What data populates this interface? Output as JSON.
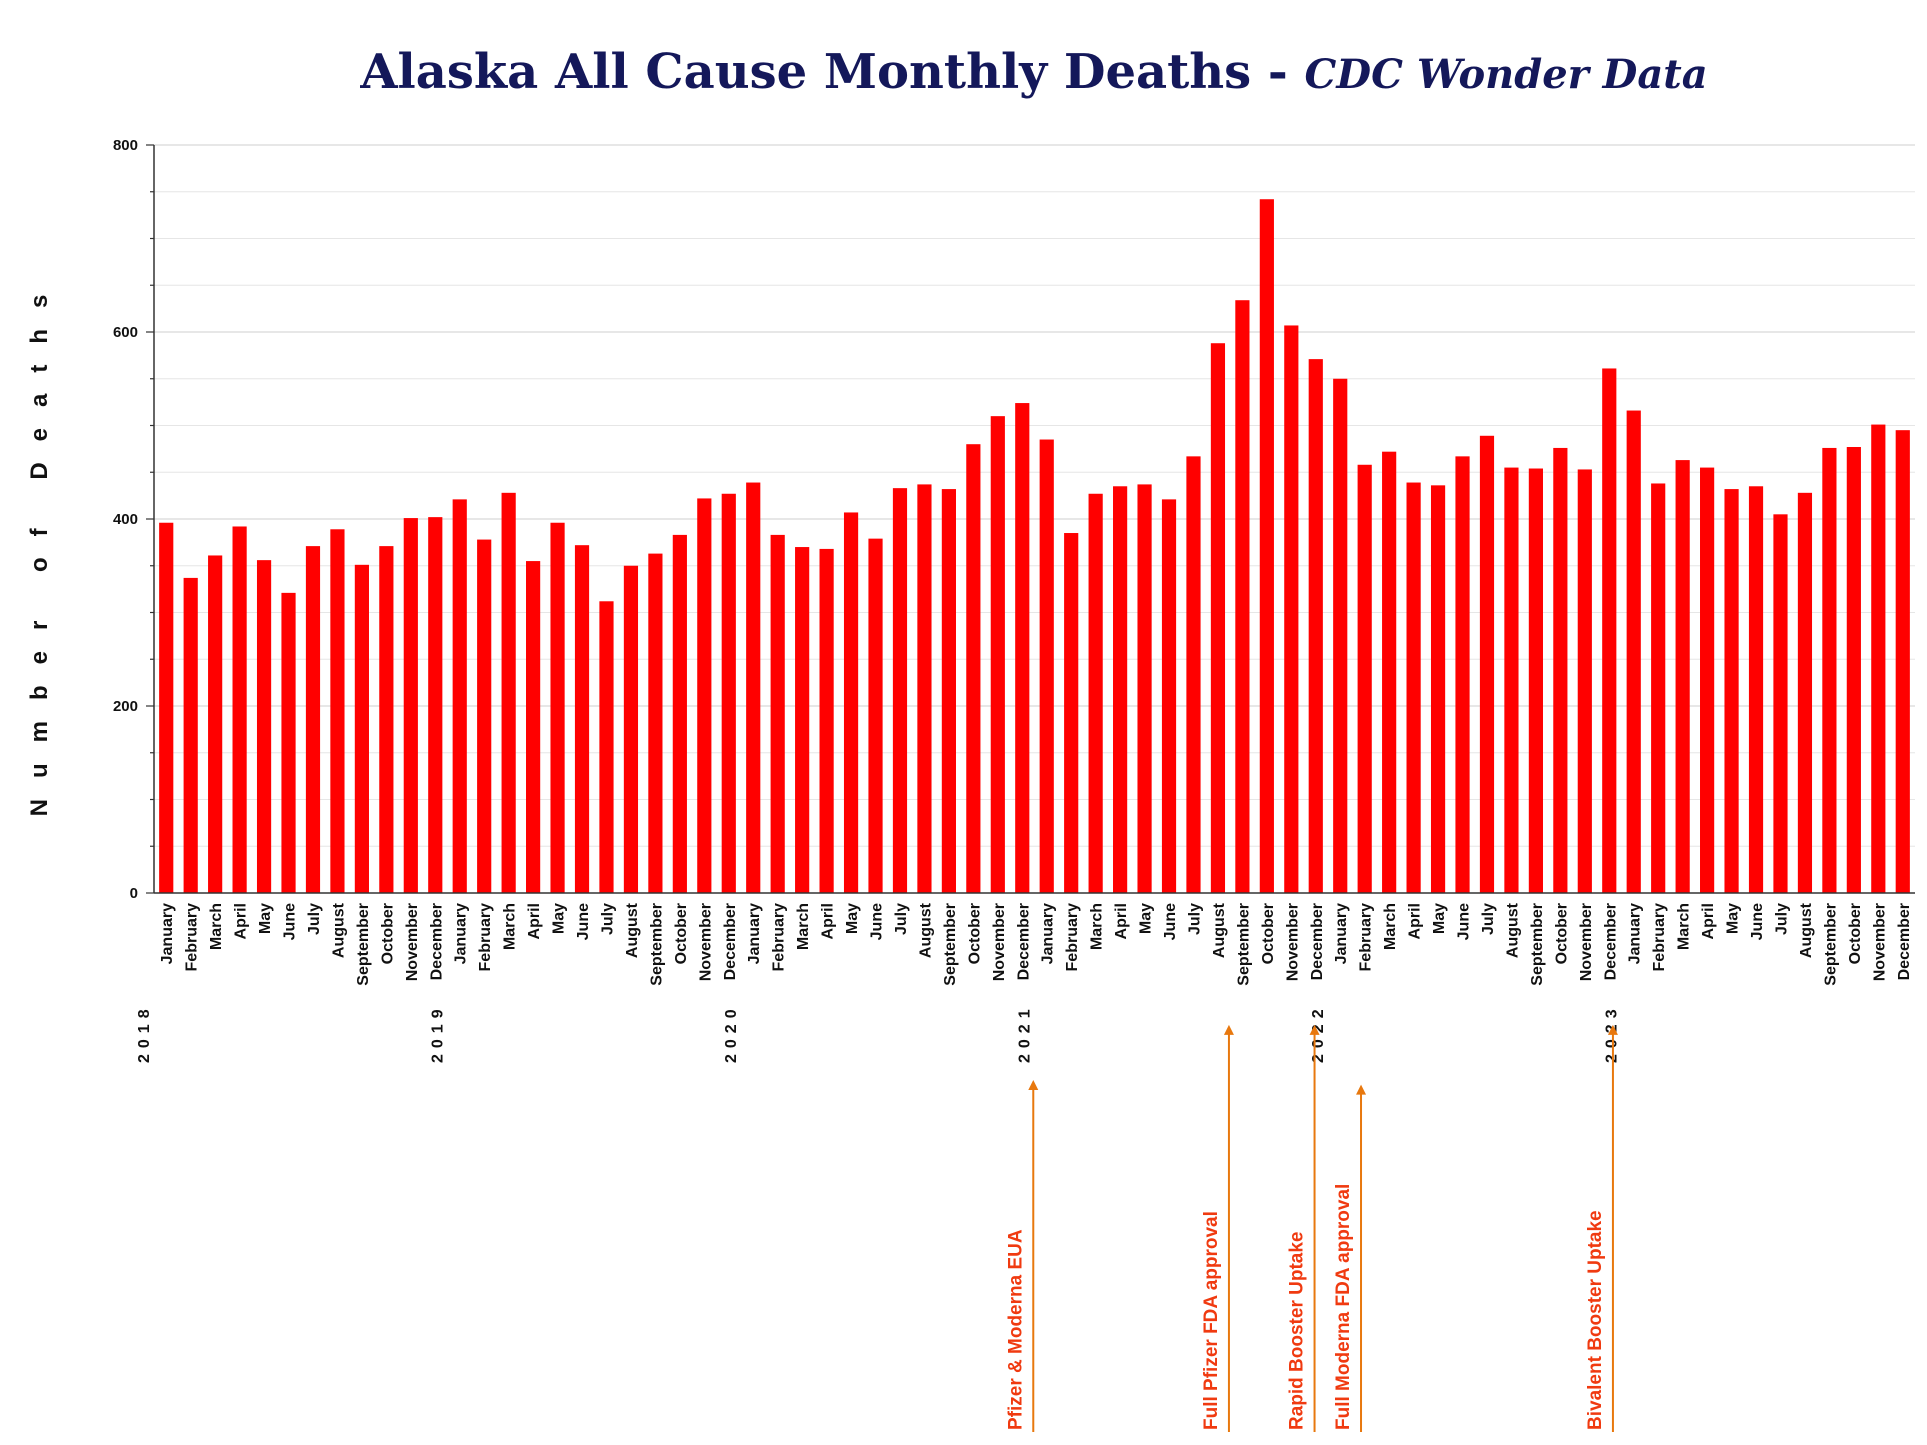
{
  "chart_data": {
    "type": "bar",
    "title": "Alaska All Cause Monthly Deaths - ",
    "subtitle": "CDC Wonder Data",
    "ylabel": "Number of Deaths",
    "xlabel": "",
    "ylim": [
      0,
      800
    ],
    "yticks": [
      0,
      200,
      400,
      600,
      800
    ],
    "grid": true,
    "colors": {
      "bar": "#ff0000",
      "annotation": "#e8780e",
      "annotation_text": "#f03a10",
      "title": "#14185a"
    },
    "years": [
      {
        "label": "2018",
        "start_index": 0
      },
      {
        "label": "2019",
        "start_index": 12
      },
      {
        "label": "2020",
        "start_index": 24
      },
      {
        "label": "2021",
        "start_index": 36
      },
      {
        "label": "2022",
        "start_index": 48
      },
      {
        "label": "2023",
        "start_index": 60
      }
    ],
    "categories": [
      "January",
      "February",
      "March",
      "April",
      "May",
      "June",
      "July",
      "August",
      "September",
      "October",
      "November",
      "December",
      "January",
      "February",
      "March",
      "April",
      "May",
      "June",
      "July",
      "August",
      "September",
      "October",
      "November",
      "December",
      "January",
      "February",
      "March",
      "April",
      "May",
      "June",
      "July",
      "August",
      "September",
      "October",
      "November",
      "December",
      "January",
      "February",
      "March",
      "April",
      "May",
      "June",
      "July",
      "August",
      "September",
      "October",
      "November",
      "December",
      "January",
      "February",
      "March",
      "April",
      "May",
      "June",
      "July",
      "August",
      "September",
      "October",
      "November",
      "December",
      "January",
      "February",
      "March",
      "April",
      "May",
      "June",
      "July",
      "August",
      "September",
      "October",
      "November",
      "December"
    ],
    "values": [
      396,
      337,
      361,
      392,
      356,
      321,
      371,
      389,
      351,
      371,
      401,
      402,
      421,
      378,
      428,
      355,
      396,
      372,
      312,
      350,
      363,
      383,
      422,
      427,
      439,
      383,
      370,
      368,
      407,
      379,
      433,
      437,
      432,
      480,
      510,
      524,
      485,
      385,
      427,
      435,
      437,
      421,
      467,
      588,
      634,
      742,
      607,
      571,
      550,
      458,
      472,
      439,
      436,
      467,
      489,
      455,
      454,
      476,
      453,
      561,
      516,
      438,
      463,
      455,
      432,
      435,
      405,
      428,
      476,
      477,
      501,
      495
    ],
    "annotations": [
      {
        "label": "Pfizer & Moderna EUA",
        "bar_index": 35,
        "arrow_top_value": -200
      },
      {
        "label": "Full Pfizer FDA approval",
        "bar_index": 43,
        "arrow_top_value": -141
      },
      {
        "label": "Rapid Booster Uptake",
        "bar_index": 46.5,
        "arrow_top_value": -141
      },
      {
        "label": "Full Moderna FDA approval",
        "bar_index": 48.4,
        "arrow_top_value": -205
      },
      {
        "label": "Bivalent Booster Uptake",
        "bar_index": 58.7,
        "arrow_top_value": -141
      }
    ]
  }
}
